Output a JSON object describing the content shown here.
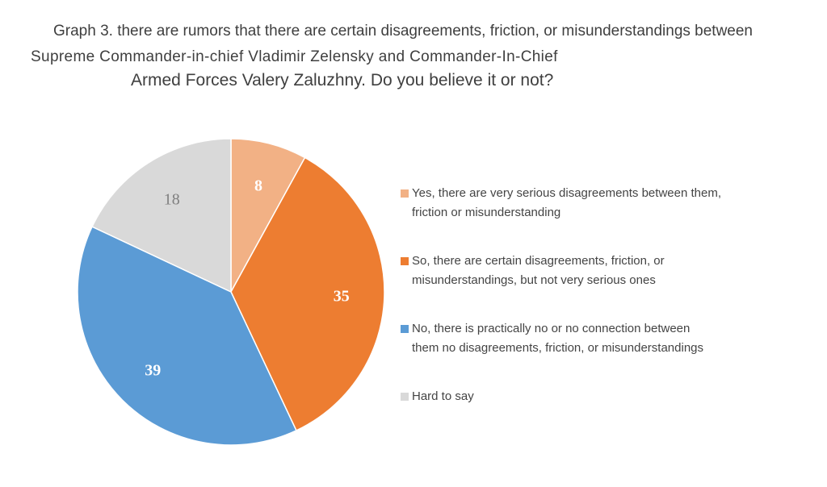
{
  "title_lines": [
    "Graph 3. there are rumors that there are certain disagreements, friction, or misunderstandings between",
    "Supreme Commander-in-chief Vladimir Zelensky and Commander-In-Chief",
    "Armed Forces Valery Zaluzhny. Do you believe it or not?"
  ],
  "chart_data": {
    "type": "pie",
    "title": "Graph 3. there are rumors that there are certain disagreements, friction, or misunderstandings between Supreme Commander-in-chief Vladimir Zelensky and Commander-In-Chief Armed Forces Valery Zaluzhny. Do you believe it or not?",
    "start_angle_deg": 0,
    "direction": "clockwise",
    "legend_position": "right",
    "slices": [
      {
        "label_lines": [
          "Yes, there are very serious disagreements between them,",
          "friction or misunderstanding"
        ],
        "value": 8,
        "color": "#f2b185",
        "value_label_color": "#ffffff"
      },
      {
        "label_lines": [
          "So, there are certain disagreements, friction, or",
          "misunderstandings, but not very serious ones"
        ],
        "value": 35,
        "color": "#ed7d31",
        "value_label_color": "#ffffff"
      },
      {
        "label_lines": [
          "No, there is practically no or no connection between",
          "them no disagreements, friction, or misunderstandings"
        ],
        "value": 39,
        "color": "#5b9bd5",
        "value_label_color": "#ffffff"
      },
      {
        "label_lines": [
          "Hard to say"
        ],
        "value": 18,
        "color": "#d9d9d9",
        "value_label_color": "#7f7f7f"
      }
    ]
  }
}
